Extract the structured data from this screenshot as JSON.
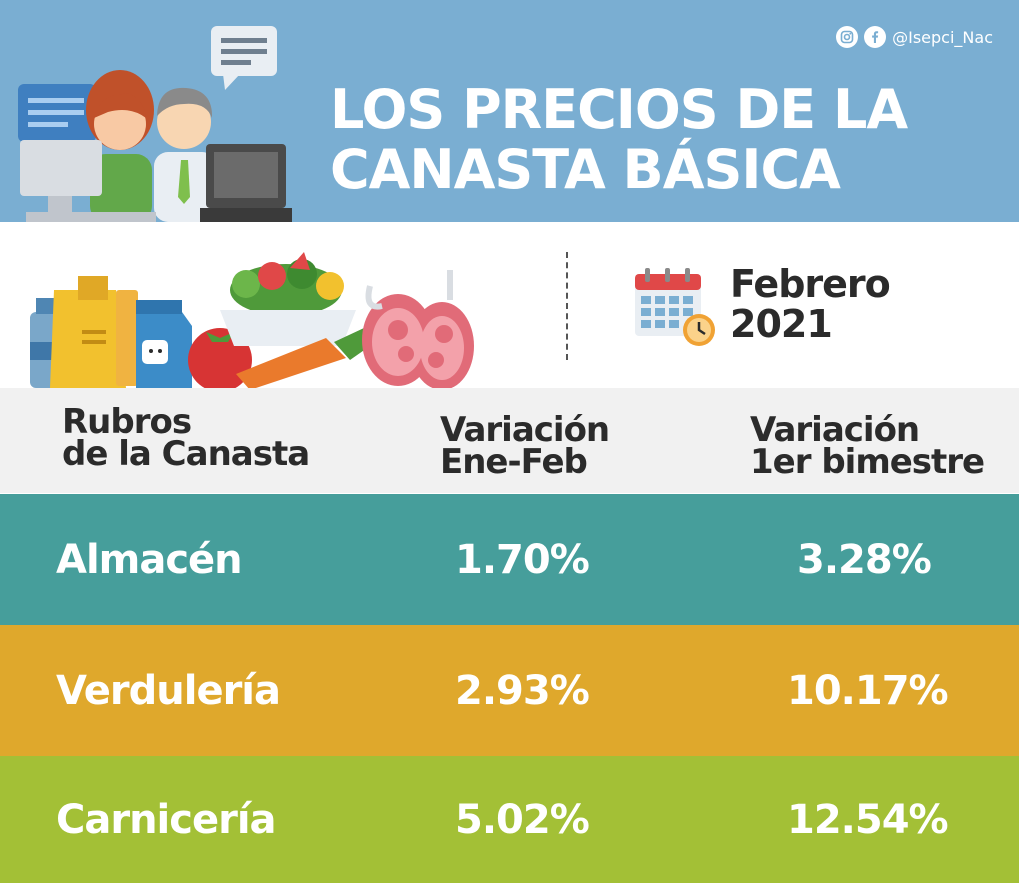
{
  "header": {
    "social_handle": "@Isepci_Nac",
    "title_line1": "LOS PRECIOS DE LA",
    "title_line2": "CANASTA BÁSICA",
    "bg_color": "#7aaed2"
  },
  "period": {
    "month": "Febrero",
    "year": "2021"
  },
  "table": {
    "headers": {
      "col1_line1": "Rubros",
      "col1_line2": "de la Canasta",
      "col2_line1": "Variación",
      "col2_line2": "Ene-Feb",
      "col3_line1": "Variación",
      "col3_line2": "1er bimestre"
    },
    "rows": [
      {
        "rubro": "Almacén",
        "ene_feb": "1.70%",
        "bimestre": "3.28%",
        "color": "#469e9b"
      },
      {
        "rubro": "Verdulería",
        "ene_feb": "2.93%",
        "bimestre": "10.17%",
        "color": "#dfa82c"
      },
      {
        "rubro": "Carnicería",
        "ene_feb": "5.02%",
        "bimestre": "12.54%",
        "color": "#a3c036"
      }
    ]
  },
  "icons": [
    "instagram-icon",
    "facebook-icon",
    "people-at-desk-illustration",
    "groceries-illustration",
    "calendar-clock-icon"
  ]
}
